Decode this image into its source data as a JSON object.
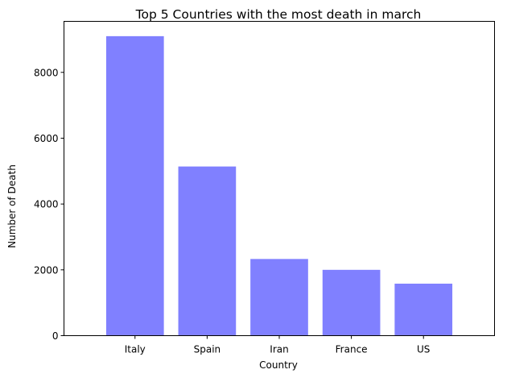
{
  "chart_data": {
    "type": "bar",
    "title": "Top 5 Countries with the most death in march",
    "xlabel": "Country",
    "ylabel": "Number of Death",
    "categories": [
      "Italy",
      "Spain",
      "Iran",
      "France",
      "US"
    ],
    "values": [
      9100,
      5140,
      2330,
      2000,
      1580
    ],
    "ylim": [
      0,
      9550
    ],
    "yticks": [
      0,
      2000,
      4000,
      6000,
      8000
    ],
    "ytick_labels": [
      "0",
      "2000",
      "4000",
      "6000",
      "8000"
    ],
    "bar_color": "#8080ff",
    "grid": false,
    "legend": "none"
  }
}
